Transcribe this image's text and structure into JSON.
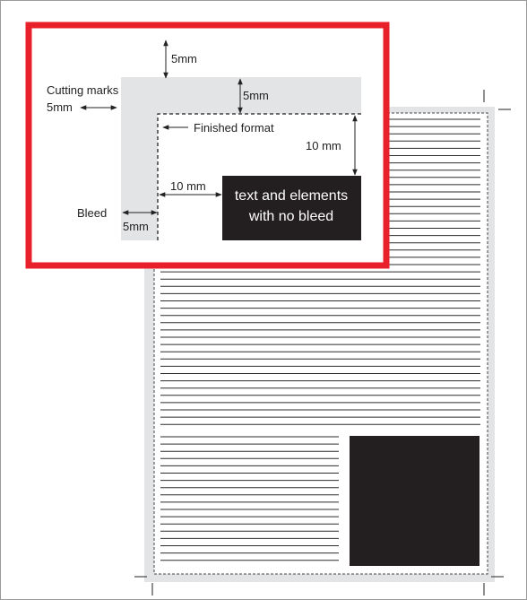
{
  "labels": {
    "top_5mm": "5mm",
    "cutting_marks": "Cutting marks",
    "cutting_marks_5mm": "5mm",
    "inner_5mm": "5mm",
    "finished_format": "Finished format",
    "right_10mm": "10 mm",
    "left_10mm": "10 mm",
    "bleed": "Bleed",
    "bleed_5mm": "5mm",
    "no_bleed_line1": "text and elements",
    "no_bleed_line2": "with no bleed"
  },
  "colors": {
    "highlight": "#e8202a",
    "bleed_area": "#e3e4e6",
    "dark_block": "#231f20",
    "rule_lines": "#2b2b2b"
  }
}
